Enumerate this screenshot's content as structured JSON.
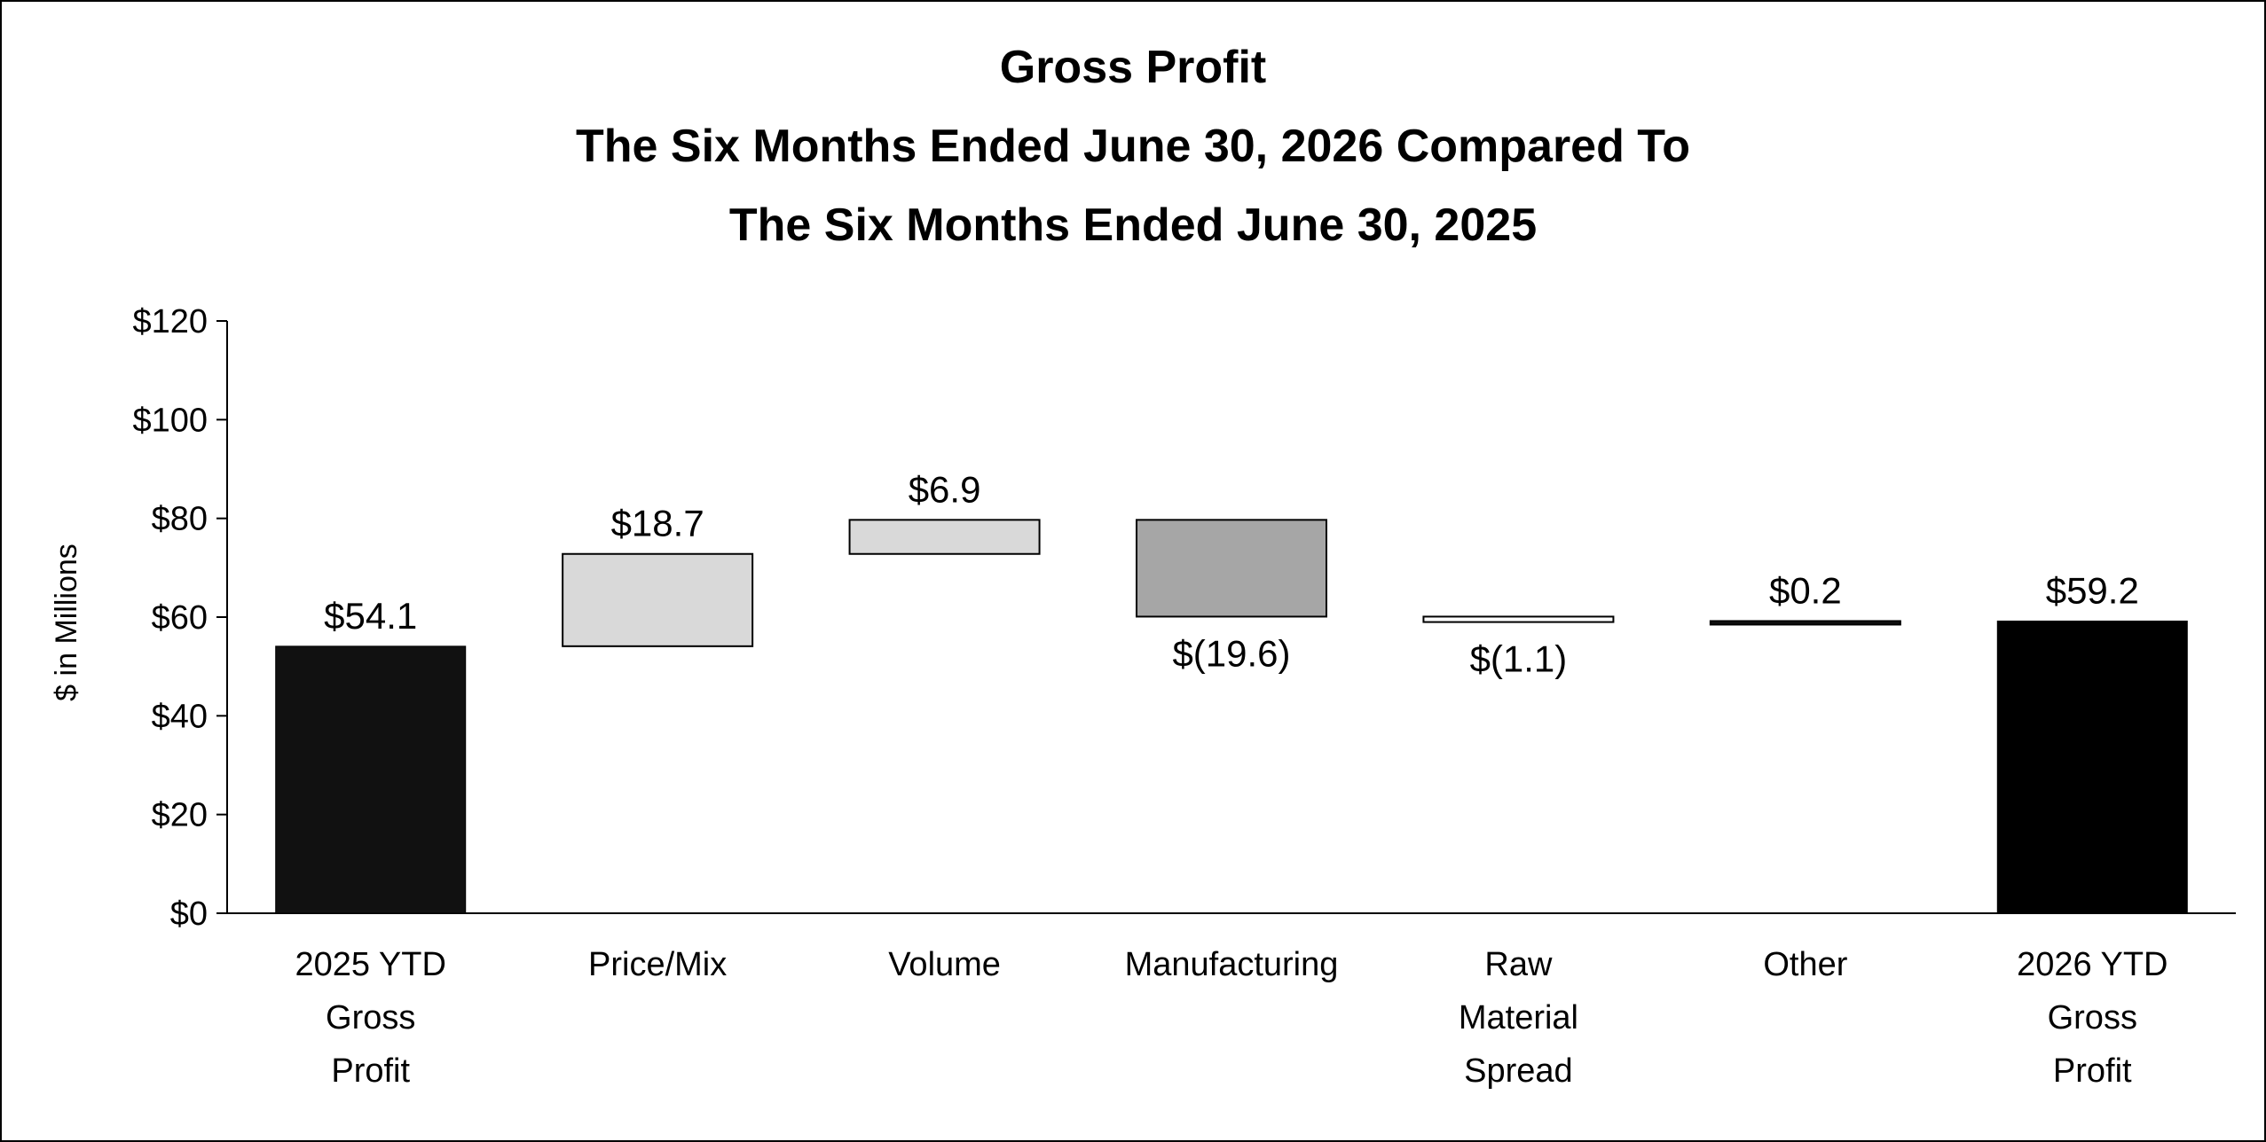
{
  "chart_data": {
    "type": "bar",
    "subtype": "waterfall",
    "title_lines": [
      "Gross Profit",
      "The Six Months Ended June 30, 2026 Compared To",
      "The Six Months Ended June 30, 2025"
    ],
    "ylabel": "$ in Millions",
    "xlabel": "",
    "ylim": [
      0,
      120
    ],
    "ytick_values": [
      0,
      20,
      40,
      60,
      80,
      100,
      120
    ],
    "ytick_labels": [
      "$0",
      "$20",
      "$40",
      "$60",
      "$80",
      "$100",
      "$120"
    ],
    "grid": false,
    "legend": "none",
    "bars": [
      {
        "category_lines": [
          "2025 YTD",
          "Gross",
          "Profit"
        ],
        "kind": "total",
        "start": 0,
        "end": 54.1,
        "label": "$54.1",
        "color": "#111111"
      },
      {
        "category_lines": [
          "Price/Mix"
        ],
        "kind": "increase",
        "start": 54.1,
        "end": 72.8,
        "label": "$18.7",
        "color": "#d9d9d9"
      },
      {
        "category_lines": [
          "Volume"
        ],
        "kind": "increase",
        "start": 72.8,
        "end": 79.7,
        "label": "$6.9",
        "color": "#d9d9d9"
      },
      {
        "category_lines": [
          "Manufacturing"
        ],
        "kind": "decrease",
        "start": 79.7,
        "end": 60.1,
        "label": "$(19.6)",
        "color": "#a6a6a6"
      },
      {
        "category_lines": [
          "Raw",
          "Material",
          "Spread"
        ],
        "kind": "decrease",
        "start": 60.1,
        "end": 59.0,
        "label": "$(1.1)",
        "color": "#ffffff"
      },
      {
        "category_lines": [
          "Other"
        ],
        "kind": "increase",
        "start": 59.0,
        "end": 59.2,
        "label": "$0.2",
        "color": "#111111"
      },
      {
        "category_lines": [
          "2026 YTD",
          "Gross",
          "Profit"
        ],
        "kind": "total",
        "start": 0,
        "end": 59.2,
        "label": "$59.2",
        "color": "#000000"
      }
    ]
  }
}
